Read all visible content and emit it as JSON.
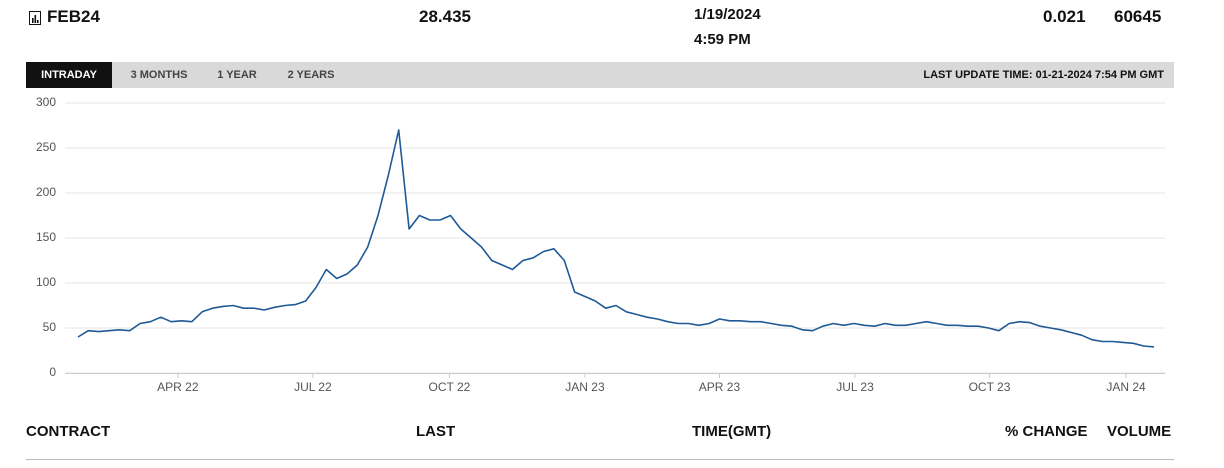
{
  "header": {
    "contract": "FEB24",
    "last": "28.435",
    "date": "1/19/2024",
    "time": "4:59 PM",
    "change": "0.021",
    "volume": "60645"
  },
  "tabs": [
    "INTRADAY",
    "3 MONTHS",
    "1 YEAR",
    "2 YEARS"
  ],
  "active_tab": 0,
  "last_update": "LAST UPDATE TIME: 01-21-2024 7:54 PM GMT",
  "chart_data": {
    "type": "line",
    "color": "#1f5a96",
    "grid": true,
    "values": [
      40,
      47,
      46,
      47,
      48,
      47,
      55,
      57,
      62,
      57,
      58,
      57,
      68,
      72,
      74,
      75,
      72,
      72,
      70,
      73,
      75,
      76,
      80,
      95,
      115,
      105,
      110,
      120,
      140,
      175,
      220,
      270,
      160,
      175,
      170,
      170,
      175,
      160,
      150,
      140,
      125,
      120,
      115,
      125,
      128,
      135,
      138,
      125,
      90,
      85,
      80,
      72,
      75,
      68,
      65,
      62,
      60,
      57,
      55,
      55,
      53,
      55,
      60,
      58,
      58,
      57,
      57,
      55,
      53,
      52,
      48,
      47,
      52,
      55,
      53,
      55,
      53,
      52,
      55,
      53,
      53,
      55,
      57,
      55,
      53,
      53,
      52,
      52,
      50,
      47,
      55,
      57,
      56,
      52,
      50,
      48,
      45,
      42,
      37,
      35,
      35,
      34,
      33,
      30,
      29
    ],
    "xlim": [
      0,
      104
    ],
    "xticks": [
      {
        "value": 9.65,
        "label": "APR 22"
      },
      {
        "value": 22.7,
        "label": "JUL 22"
      },
      {
        "value": 35.9,
        "label": "OCT 22"
      },
      {
        "value": 49.0,
        "label": "JAN 23"
      },
      {
        "value": 62.0,
        "label": "APR 23"
      },
      {
        "value": 75.1,
        "label": "JUL 23"
      },
      {
        "value": 88.1,
        "label": "OCT 23"
      },
      {
        "value": 101.3,
        "label": "JAN 24"
      }
    ],
    "ylim": [
      0,
      300
    ],
    "yticks": [
      0,
      50,
      100,
      150,
      200,
      250,
      300
    ]
  },
  "table": {
    "columns": [
      "CONTRACT",
      "LAST",
      "TIME(GMT)",
      "% CHANGE",
      "VOLUME"
    ]
  }
}
